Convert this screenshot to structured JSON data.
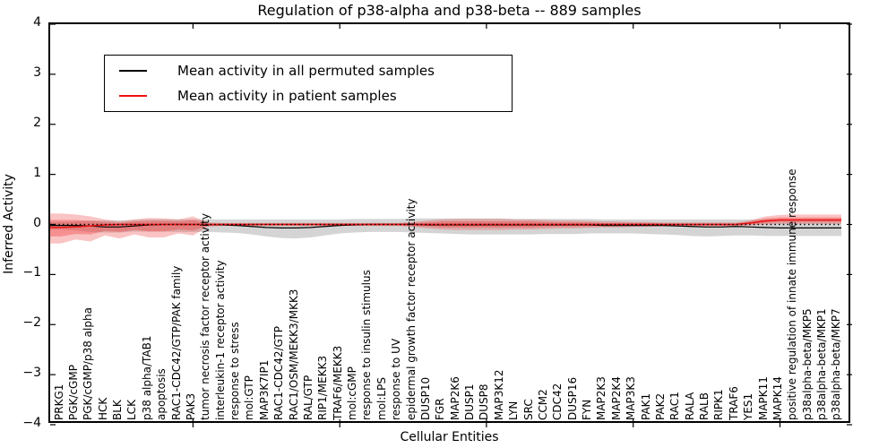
{
  "title": "Regulation of p38-alpha and p38-beta -- 889 samples",
  "axes": {
    "xlabel": "Cellular Entities",
    "ylabel": "Inferred Activity",
    "y_ticks": [
      {
        "label": "4",
        "value": 4
      },
      {
        "label": "3",
        "value": 3
      },
      {
        "label": "2",
        "value": 2
      },
      {
        "label": "1",
        "value": 1
      },
      {
        "label": "0",
        "value": 0
      },
      {
        "label": "−1",
        "value": -1
      },
      {
        "label": "−2",
        "value": -2
      },
      {
        "label": "−3",
        "value": -3
      },
      {
        "label": "−4",
        "value": -4
      }
    ],
    "x_major_tick_every": 10
  },
  "legend": {
    "items": [
      {
        "label": "Mean activity in all permuted samples",
        "color": "#000000"
      },
      {
        "label": "Mean activity in patient samples",
        "color": "#ee1111"
      }
    ]
  },
  "chart_data": {
    "type": "line",
    "title": "Regulation of p38-alpha and p38-beta -- 889 samples",
    "xlabel": "Cellular Entities",
    "ylabel": "Inferred Activity",
    "ylim": [
      -4,
      4
    ],
    "grid": false,
    "legend_position": "upper left",
    "zero_line": {
      "style": "dotted",
      "color": "#000000",
      "y": 0
    },
    "categories": [
      "PRKG1",
      "PGK/cGMP",
      "PGK/cGMP/p38 alpha",
      "HCK",
      "BLK",
      "LCK",
      "p38 alpha/TAB1",
      "apoptosis",
      "RAC1-CDC42/GTP/PAK family",
      "PAK3",
      "tumor necrosis factor receptor activity",
      "interleukin-1 receptor activity",
      "response to stress",
      "mol:GTP",
      "MAP3K7IP1",
      "RAC1-CDC42/GTP",
      "RAC1/OSM/MEKK3/MKK3",
      "RAL/GTP",
      "RIP1/MEKK3",
      "TRAF6/MEKK3",
      "mol:cGMP",
      "response to insulin stimulus",
      "mol:LPS",
      "response to UV",
      "epidermal growth factor receptor activity",
      "DUSP10",
      "FGR",
      "MAP2K6",
      "DUSP1",
      "DUSP8",
      "MAP3K12",
      "LYN",
      "SRC",
      "CCM2",
      "CDC42",
      "DUSP16",
      "FYN",
      "MAP2K3",
      "MAP2K4",
      "MAP3K3",
      "PAK1",
      "PAK2",
      "RAC1",
      "RALA",
      "RALB",
      "RIPK1",
      "TRAF6",
      "YES1",
      "MAPK11",
      "MAPK14",
      "positive regulation of innate immune response",
      "p38alpha-beta/MKP5",
      "p38alpha-beta/MKP1",
      "p38alpha-beta/MKP7"
    ],
    "series": [
      {
        "name": "Mean activity in all permuted samples",
        "color": "#000000",
        "values": [
          -0.02,
          -0.02,
          -0.03,
          -0.05,
          -0.05,
          -0.03,
          -0.01,
          0,
          0,
          0,
          0,
          -0.01,
          -0.02,
          -0.04,
          -0.06,
          -0.07,
          -0.07,
          -0.06,
          -0.04,
          -0.02,
          -0.01,
          0,
          0,
          0,
          0,
          -0.01,
          -0.01,
          -0.01,
          -0.01,
          -0.01,
          -0.01,
          -0.01,
          -0.01,
          -0.01,
          -0.01,
          -0.01,
          -0.01,
          -0.02,
          -0.02,
          -0.02,
          -0.02,
          -0.02,
          -0.03,
          -0.04,
          -0.05,
          -0.05,
          -0.04,
          -0.05,
          -0.06,
          -0.07,
          -0.07,
          -0.07,
          -0.07,
          -0.07
        ]
      },
      {
        "name": "Mean activity in patient samples",
        "color": "#ee1111",
        "values": [
          -0.06,
          -0.05,
          -0.03,
          -0.01,
          0,
          0,
          0,
          0,
          0,
          0,
          0,
          0,
          0,
          0,
          0,
          0,
          0,
          0,
          0,
          0,
          0,
          0,
          0,
          0,
          0,
          0,
          0,
          0,
          0,
          0,
          0,
          0,
          0,
          0,
          0,
          0,
          0,
          0,
          0,
          0,
          0,
          0,
          0,
          0,
          0,
          0,
          0,
          0.03,
          0.07,
          0.09,
          0.09,
          0.09,
          0.09,
          0.09
        ]
      }
    ],
    "bands": [
      {
        "name": "permuted-samples-range",
        "color": "rgba(120,120,120,0.32)",
        "lo": [
          -0.1,
          -0.12,
          -0.15,
          -0.16,
          -0.16,
          -0.14,
          -0.14,
          -0.14,
          -0.15,
          -0.15,
          -0.15,
          -0.16,
          -0.17,
          -0.2,
          -0.24,
          -0.27,
          -0.28,
          -0.26,
          -0.22,
          -0.18,
          -0.16,
          -0.15,
          -0.15,
          -0.15,
          -0.16,
          -0.17,
          -0.18,
          -0.19,
          -0.2,
          -0.2,
          -0.2,
          -0.2,
          -0.2,
          -0.19,
          -0.19,
          -0.19,
          -0.18,
          -0.18,
          -0.18,
          -0.18,
          -0.19,
          -0.2,
          -0.21,
          -0.23,
          -0.24,
          -0.23,
          -0.22,
          -0.22,
          -0.23,
          -0.23,
          -0.23,
          -0.23,
          -0.23,
          -0.23
        ],
        "hi": [
          0.05,
          0.06,
          0.08,
          0.08,
          0.08,
          0.09,
          0.1,
          0.1,
          0.1,
          0.1,
          0.1,
          0.1,
          0.1,
          0.1,
          0.1,
          0.1,
          0.1,
          0.1,
          0.1,
          0.1,
          0.11,
          0.11,
          0.11,
          0.11,
          0.12,
          0.12,
          0.12,
          0.12,
          0.12,
          0.12,
          0.12,
          0.11,
          0.11,
          0.11,
          0.11,
          0.11,
          0.11,
          0.1,
          0.1,
          0.1,
          0.1,
          0.1,
          0.1,
          0.1,
          0.1,
          0.1,
          0.1,
          0.1,
          0.1,
          0.1,
          0.1,
          0.1,
          0.1,
          0.1
        ]
      },
      {
        "name": "patient-samples-range-outer",
        "color": "rgba(239,60,60,0.30)",
        "lo": [
          -0.38,
          -0.3,
          -0.34,
          -0.22,
          -0.28,
          -0.2,
          -0.26,
          -0.26,
          -0.18,
          -0.22,
          -0.05,
          -0.03,
          -0.03,
          -0.03,
          -0.03,
          -0.03,
          -0.03,
          -0.03,
          -0.03,
          -0.03,
          -0.03,
          -0.03,
          -0.03,
          -0.03,
          -0.05,
          -0.08,
          -0.1,
          -0.11,
          -0.11,
          -0.11,
          -0.11,
          -0.1,
          -0.1,
          -0.09,
          -0.08,
          -0.08,
          -0.07,
          -0.06,
          -0.06,
          -0.05,
          -0.05,
          -0.04,
          -0.04,
          -0.04,
          -0.04,
          -0.04,
          -0.04,
          -0.02,
          0.0,
          0.01,
          0.01,
          0.01,
          0.01,
          0.01
        ],
        "hi": [
          0.22,
          0.2,
          0.16,
          0.1,
          0.06,
          0.1,
          0.13,
          0.12,
          0.1,
          0.16,
          0.04,
          0.03,
          0.03,
          0.03,
          0.03,
          0.03,
          0.03,
          0.03,
          0.03,
          0.03,
          0.03,
          0.03,
          0.03,
          0.03,
          0.05,
          0.08,
          0.1,
          0.11,
          0.11,
          0.11,
          0.11,
          0.1,
          0.1,
          0.09,
          0.08,
          0.08,
          0.07,
          0.06,
          0.06,
          0.05,
          0.05,
          0.04,
          0.04,
          0.04,
          0.04,
          0.04,
          0.04,
          0.08,
          0.16,
          0.19,
          0.2,
          0.2,
          0.2,
          0.2
        ]
      },
      {
        "name": "patient-samples-range-inner",
        "color": "rgba(239,60,60,0.38)",
        "lo": [
          -0.24,
          -0.19,
          -0.2,
          -0.13,
          -0.15,
          -0.11,
          -0.14,
          -0.14,
          -0.1,
          -0.12,
          -0.03,
          -0.02,
          -0.02,
          -0.02,
          -0.02,
          -0.02,
          -0.02,
          -0.02,
          -0.02,
          -0.02,
          -0.02,
          -0.02,
          -0.02,
          -0.02,
          -0.03,
          -0.04,
          -0.06,
          -0.06,
          -0.06,
          -0.06,
          -0.06,
          -0.06,
          -0.06,
          -0.05,
          -0.04,
          -0.04,
          -0.04,
          -0.03,
          -0.03,
          -0.03,
          -0.03,
          -0.02,
          -0.02,
          -0.02,
          -0.02,
          -0.02,
          -0.02,
          0.0,
          0.03,
          0.05,
          0.05,
          0.05,
          0.05,
          0.05
        ],
        "hi": [
          0.09,
          0.09,
          0.07,
          0.05,
          0.03,
          0.06,
          0.07,
          0.07,
          0.06,
          0.09,
          0.02,
          0.02,
          0.02,
          0.02,
          0.02,
          0.02,
          0.02,
          0.02,
          0.02,
          0.02,
          0.02,
          0.02,
          0.02,
          0.02,
          0.03,
          0.04,
          0.06,
          0.06,
          0.06,
          0.06,
          0.06,
          0.06,
          0.06,
          0.05,
          0.04,
          0.04,
          0.04,
          0.03,
          0.03,
          0.03,
          0.03,
          0.02,
          0.02,
          0.02,
          0.02,
          0.02,
          0.02,
          0.06,
          0.12,
          0.14,
          0.14,
          0.14,
          0.14,
          0.14
        ]
      }
    ]
  }
}
